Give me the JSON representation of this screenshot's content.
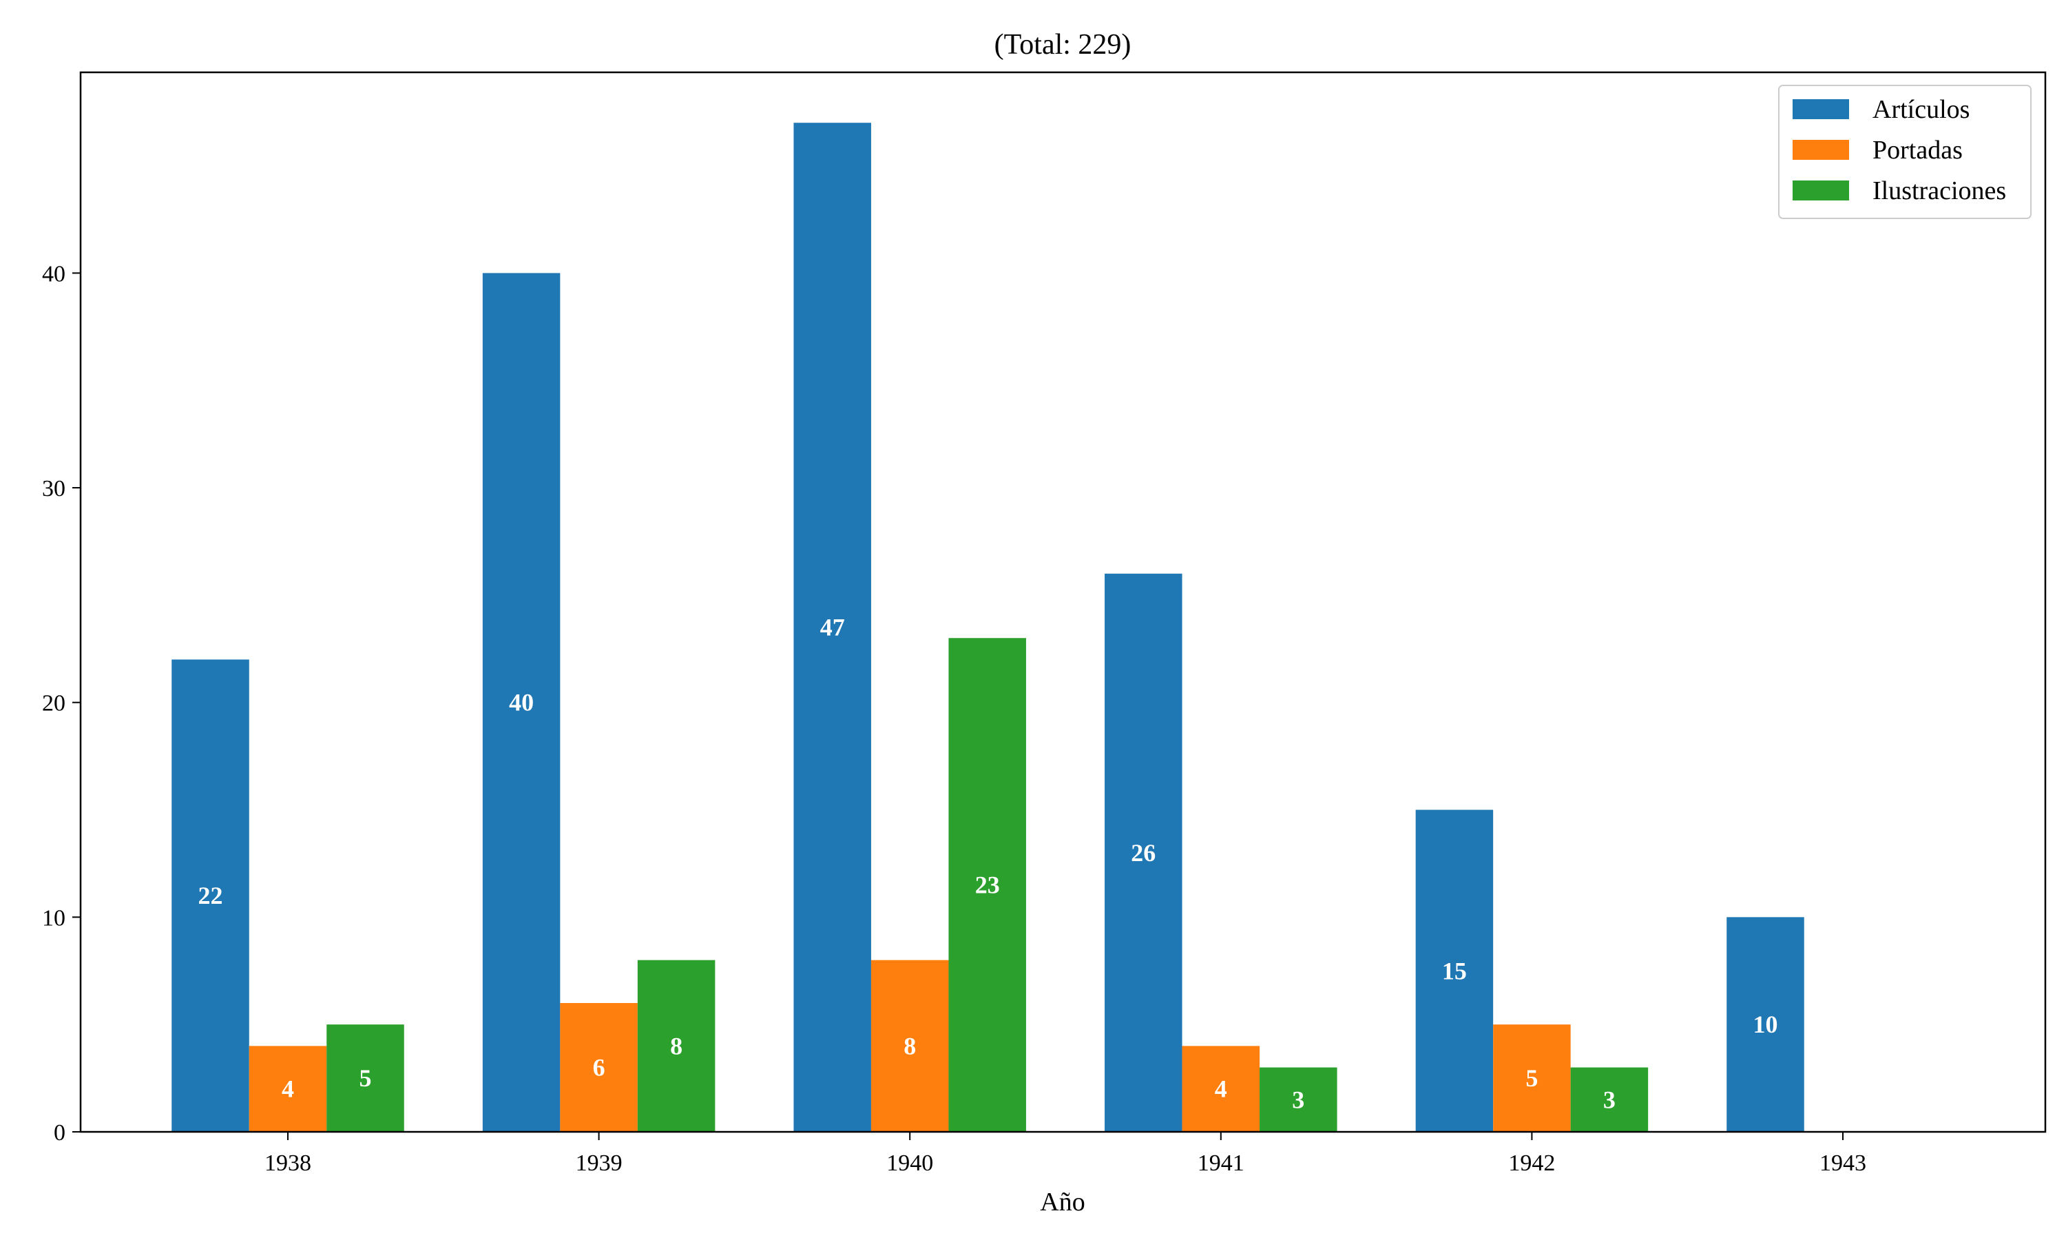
{
  "chart_data": {
    "type": "bar",
    "title": "(Total: 229)",
    "xlabel": "Año",
    "ylabel": "",
    "categories": [
      "1938",
      "1939",
      "1940",
      "1941",
      "1942",
      "1943"
    ],
    "series": [
      {
        "name": "Artículos",
        "color": "#1f77b4",
        "values": [
          22,
          40,
          47,
          26,
          15,
          10
        ]
      },
      {
        "name": "Portadas",
        "color": "#ff7f0e",
        "values": [
          4,
          6,
          8,
          4,
          5,
          0
        ]
      },
      {
        "name": "Ilustraciones",
        "color": "#2ca02c",
        "values": [
          5,
          8,
          23,
          3,
          3,
          0
        ]
      }
    ],
    "ylim": [
      0,
      49.35
    ],
    "yticks": [
      0,
      10,
      20,
      30,
      40
    ],
    "legend": "top-right",
    "grid": false,
    "data_labels": true
  }
}
